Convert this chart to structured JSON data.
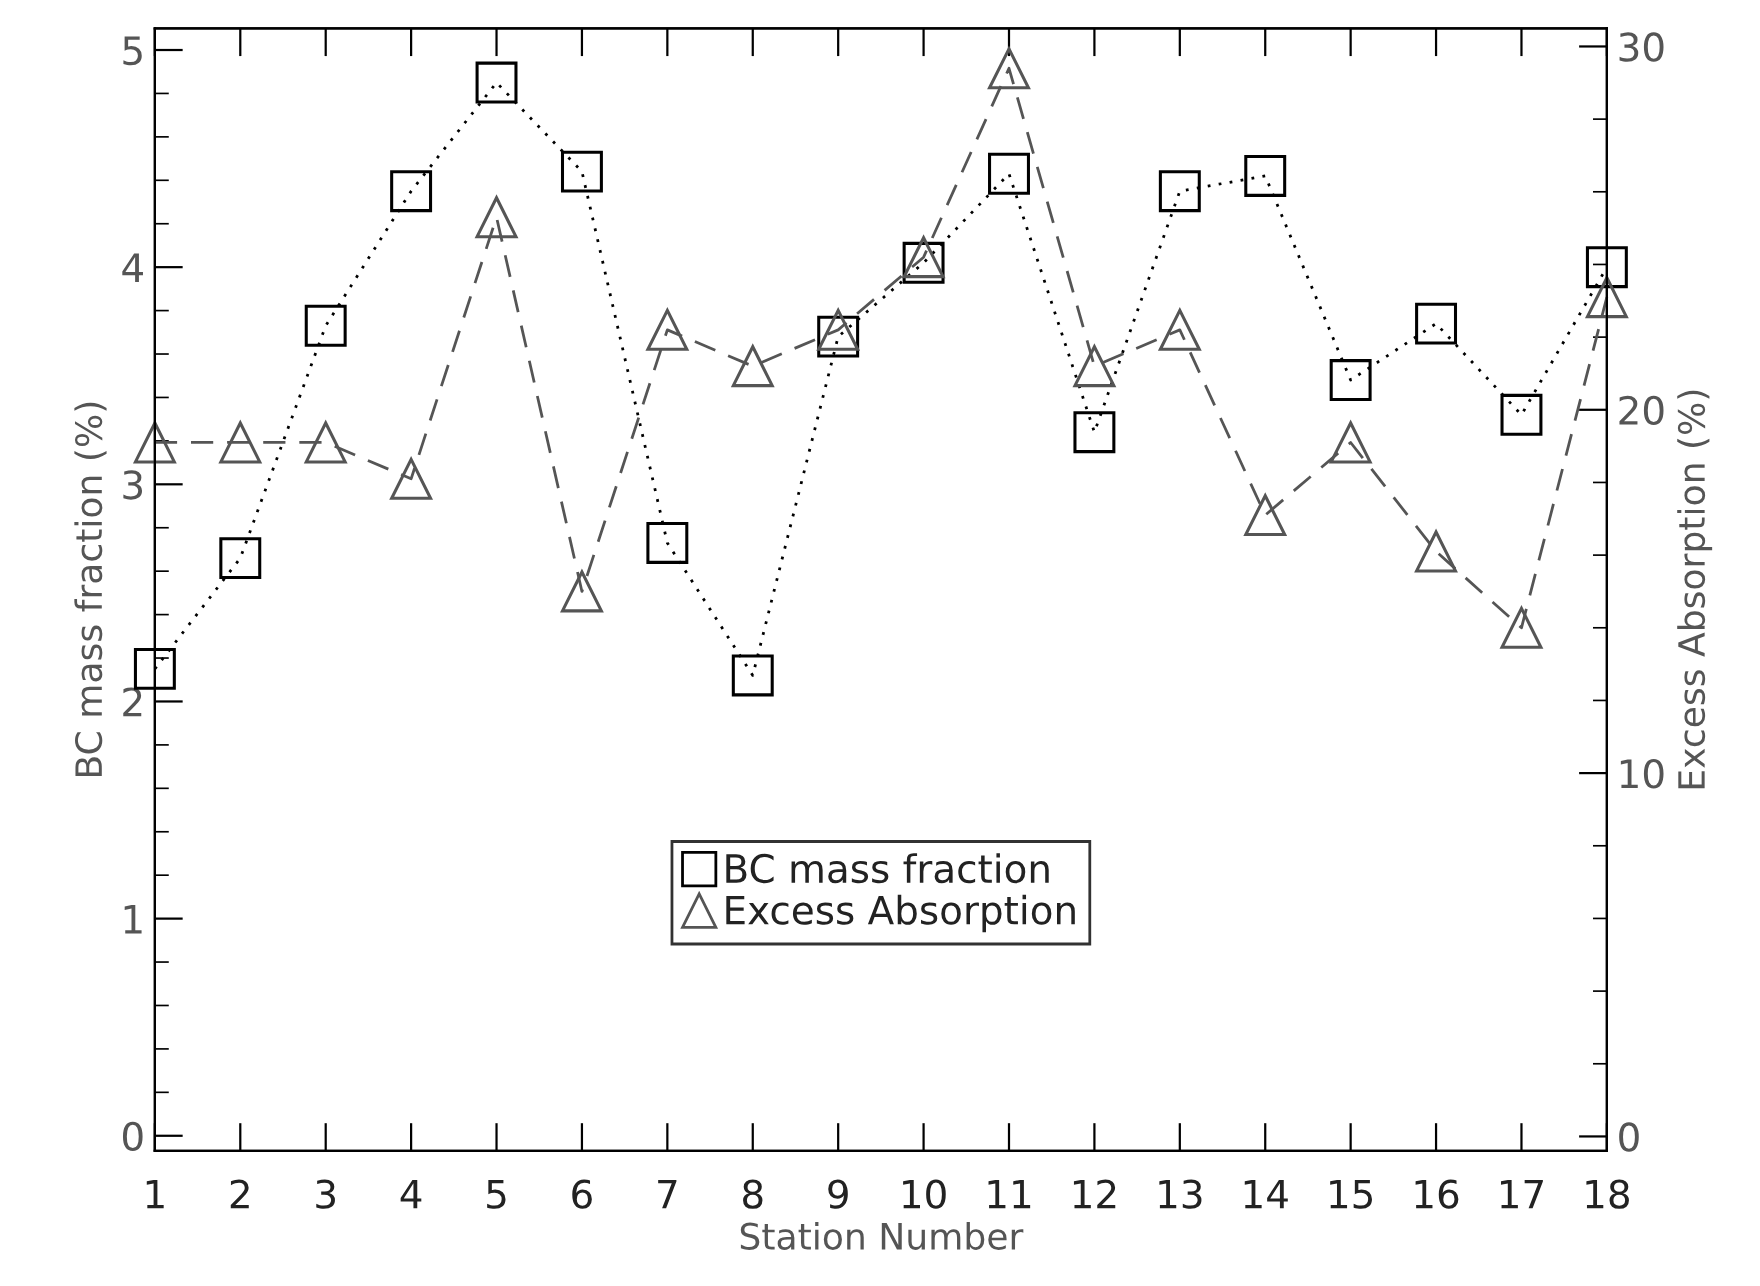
{
  "chart_data": {
    "type": "line",
    "xlabel": "Station Number",
    "ylabel": "BC mass fraction (%)",
    "y2label": "Excess Absorption (%)",
    "x": [
      1,
      2,
      3,
      4,
      5,
      6,
      7,
      8,
      9,
      10,
      11,
      12,
      13,
      14,
      15,
      16,
      17,
      18
    ],
    "xlim": [
      1,
      18
    ],
    "xticks": [
      1,
      2,
      3,
      4,
      5,
      6,
      7,
      8,
      9,
      10,
      11,
      12,
      13,
      14,
      15,
      16,
      17,
      18
    ],
    "ylim": [
      -0.07,
      5.1
    ],
    "yticks": [
      0,
      1,
      2,
      3,
      4,
      5
    ],
    "y2lim": [
      -0.4,
      30.5
    ],
    "y2ticks": [
      0,
      10,
      20,
      30
    ],
    "legend": "bottom",
    "grid": false,
    "series": [
      {
        "name": "BC mass fraction",
        "color": "#000000",
        "marker": "square",
        "line_style": "dotted",
        "values": [
          2.15,
          2.66,
          3.73,
          4.35,
          4.85,
          4.44,
          2.73,
          2.12,
          3.68,
          4.02,
          4.43,
          3.24,
          4.35,
          4.42,
          3.48,
          3.74,
          3.32,
          4.0
        ]
      },
      {
        "name": "Excess Absorption",
        "color": "#555555",
        "marker": "triangle",
        "line_style": "dashed",
        "axis": "y2",
        "values": [
          19.1,
          19.1,
          19.1,
          18.1,
          25.3,
          15.0,
          22.2,
          21.2,
          22.2,
          24.2,
          29.4,
          21.2,
          22.2,
          17.1,
          19.1,
          16.1,
          14.0,
          23.1
        ]
      }
    ]
  }
}
